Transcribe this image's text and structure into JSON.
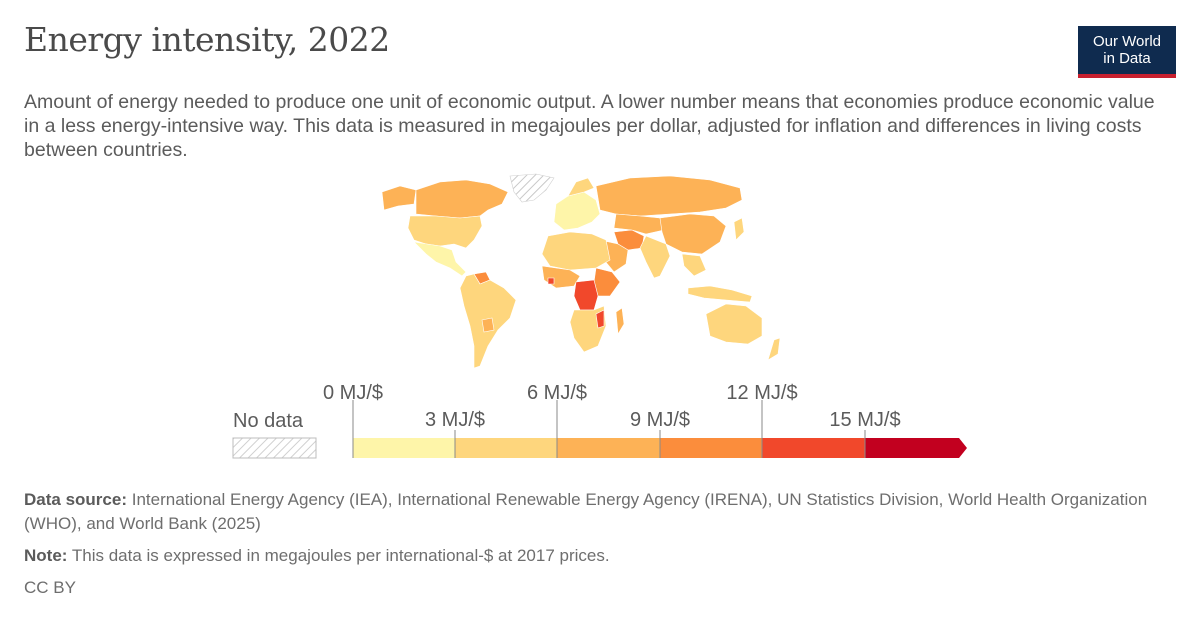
{
  "header": {
    "title": "Energy intensity, 2022",
    "subtitle": "Amount of energy needed to produce one unit of economic output. A lower number means that economies produce economic value in a less energy-intensive way. This data is measured in megajoules per dollar, adjusted for inflation and differences in living costs between countries.",
    "logo_line1": "Our World",
    "logo_line2": "in Data"
  },
  "legend": {
    "no_data_label": "No data",
    "bin_labels": [
      "0 MJ/$",
      "3 MJ/$",
      "6 MJ/$",
      "9 MJ/$",
      "12 MJ/$",
      "15 MJ/$"
    ],
    "colors": [
      "#fef5a9",
      "#fed67d",
      "#fdb256",
      "#fb8d3c",
      "#f1482b",
      "#c2001f"
    ],
    "no_data_color": "#e6e6e6"
  },
  "footer": {
    "source_label": "Data source:",
    "source_text": "International Energy Agency (IEA), International Renewable Energy Agency (IRENA), UN Statistics Division, World Health Organization (WHO), and World Bank (2025)",
    "note_label": "Note:",
    "note_text": "This data is expressed in megajoules per international-$ at 2017 prices.",
    "license": "CC BY"
  }
}
